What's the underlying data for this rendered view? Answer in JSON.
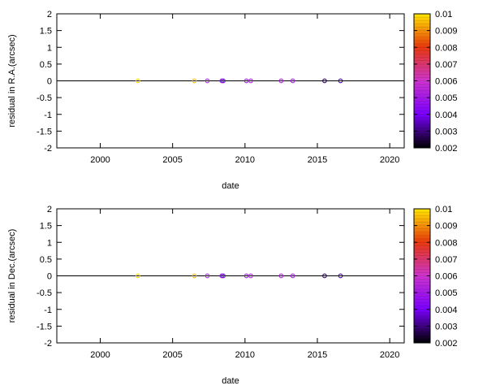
{
  "chart_data": [
    {
      "type": "scatter",
      "xlabel": "date",
      "ylabel": "residual in R.A.(arcsec)",
      "xlim": [
        1997,
        2021
      ],
      "ylim": [
        -2,
        2
      ],
      "xticks": [
        2000,
        2005,
        2010,
        2015,
        2020
      ],
      "yticks": [
        -2,
        -1.5,
        -1,
        -0.5,
        0,
        0.5,
        1,
        1.5,
        2
      ],
      "zero_line": true,
      "grid": false,
      "colorbar": {
        "range": [
          0.002,
          0.01
        ],
        "ticks": [
          "0.002",
          "0.003",
          "0.004",
          "0.005",
          "0.006",
          "0.007",
          "0.008",
          "0.009",
          "0.01"
        ],
        "colors": [
          "#000000",
          "#7a00ff",
          "#cc33cc",
          "#e8380d",
          "#ffe600"
        ]
      },
      "points": [
        {
          "x": 2002.6,
          "y": 0,
          "c": 0.0098
        },
        {
          "x": 2006.5,
          "y": 0,
          "c": 0.0095
        },
        {
          "x": 2007.4,
          "y": 0,
          "c": 0.0052
        },
        {
          "x": 2008.4,
          "y": 0,
          "c": 0.0045
        },
        {
          "x": 2008.5,
          "y": 0,
          "c": 0.0038
        },
        {
          "x": 2010.1,
          "y": 0,
          "c": 0.005
        },
        {
          "x": 2010.4,
          "y": 0,
          "c": 0.0052
        },
        {
          "x": 2012.5,
          "y": 0,
          "c": 0.0053
        },
        {
          "x": 2013.3,
          "y": 0,
          "c": 0.005
        },
        {
          "x": 2015.5,
          "y": 0,
          "c": 0.0028
        },
        {
          "x": 2016.6,
          "y": 0,
          "c": 0.0032
        }
      ]
    },
    {
      "type": "scatter",
      "xlabel": "date",
      "ylabel": "residual in Dec.(arcsec)",
      "xlim": [
        1997,
        2021
      ],
      "ylim": [
        -2,
        2
      ],
      "xticks": [
        2000,
        2005,
        2010,
        2015,
        2020
      ],
      "yticks": [
        -2,
        -1.5,
        -1,
        -0.5,
        0,
        0.5,
        1,
        1.5,
        2
      ],
      "zero_line": true,
      "grid": false,
      "colorbar": {
        "range": [
          0.002,
          0.01
        ],
        "ticks": [
          "0.002",
          "0.003",
          "0.004",
          "0.005",
          "0.006",
          "0.007",
          "0.008",
          "0.009",
          "0.01"
        ],
        "colors": [
          "#000000",
          "#7a00ff",
          "#cc33cc",
          "#e8380d",
          "#ffe600"
        ]
      },
      "points": [
        {
          "x": 2002.6,
          "y": 0,
          "c": 0.0098
        },
        {
          "x": 2006.5,
          "y": 0,
          "c": 0.0095
        },
        {
          "x": 2007.4,
          "y": 0,
          "c": 0.0052
        },
        {
          "x": 2008.4,
          "y": 0,
          "c": 0.0045
        },
        {
          "x": 2008.5,
          "y": 0,
          "c": 0.0038
        },
        {
          "x": 2010.1,
          "y": 0,
          "c": 0.005
        },
        {
          "x": 2010.4,
          "y": 0,
          "c": 0.0052
        },
        {
          "x": 2012.5,
          "y": 0,
          "c": 0.0053
        },
        {
          "x": 2013.3,
          "y": 0,
          "c": 0.005
        },
        {
          "x": 2015.5,
          "y": 0,
          "c": 0.0028
        },
        {
          "x": 2016.6,
          "y": 0,
          "c": 0.0032
        }
      ]
    }
  ]
}
